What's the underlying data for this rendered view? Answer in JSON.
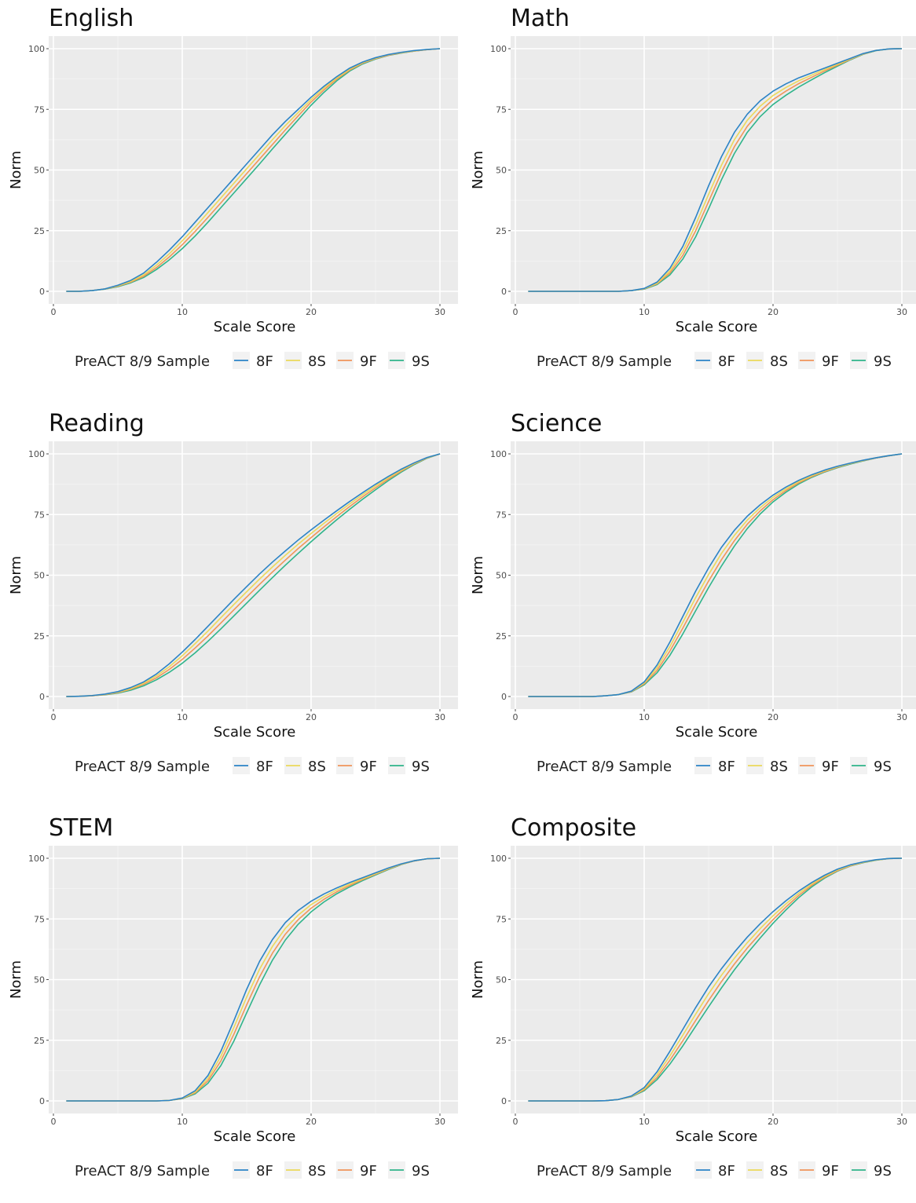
{
  "figure": {
    "legend_title": "PreACT 8/9 Sample"
  },
  "chart_data": [
    {
      "type": "line",
      "title": "English",
      "xlabel": "Scale Score",
      "ylabel": "Norm",
      "xlim": [
        0,
        30
      ],
      "ylim": [
        0,
        100
      ],
      "xticks": [
        "0",
        "10",
        "20",
        "30"
      ],
      "yticks": [
        "0",
        "25",
        "50",
        "75",
        "100"
      ],
      "grid": true,
      "legend_position": "bottom",
      "x": [
        1,
        2,
        3,
        4,
        5,
        6,
        7,
        8,
        9,
        10,
        11,
        12,
        13,
        14,
        15,
        16,
        17,
        18,
        19,
        20,
        21,
        22,
        23,
        24,
        25,
        26,
        27,
        28,
        29,
        30
      ],
      "series": [
        {
          "name": "8F",
          "color": "#2b83c6",
          "values": [
            0,
            0,
            0.3,
            1,
            2.5,
            4.5,
            7.5,
            12,
            17,
            22.5,
            28.5,
            34.5,
            40.5,
            46.5,
            52.5,
            58.5,
            64.5,
            70,
            75,
            80,
            84.5,
            88.5,
            92,
            94.5,
            96.3,
            97.6,
            98.5,
            99.2,
            99.7,
            100
          ]
        },
        {
          "name": "8S",
          "color": "#ebd95a",
          "values": [
            0,
            0,
            0.3,
            1,
            2.3,
            4.1,
            6.8,
            10.8,
            15.5,
            20.8,
            26.5,
            32.5,
            38.5,
            44.5,
            50.5,
            56.5,
            62.5,
            68.3,
            73.7,
            79,
            83.8,
            88,
            91.6,
            94.3,
            96.1,
            97.5,
            98.4,
            99.1,
            99.7,
            100
          ]
        },
        {
          "name": "9F",
          "color": "#f0955a",
          "values": [
            0,
            0,
            0.3,
            1,
            2.1,
            3.8,
            6.2,
            9.8,
            14.2,
            19.2,
            24.7,
            30.5,
            36.5,
            42.5,
            48.5,
            54.5,
            60.5,
            66.5,
            72.3,
            78,
            83,
            87.5,
            91.2,
            94,
            95.9,
            97.3,
            98.3,
            99,
            99.6,
            100
          ]
        },
        {
          "name": "9S",
          "color": "#2fb48a",
          "values": [
            0,
            0,
            0.3,
            0.9,
            1.9,
            3.5,
            5.7,
            9,
            13,
            17.6,
            22.8,
            28.5,
            34.5,
            40.5,
            46.5,
            52.5,
            58.7,
            64.7,
            70.7,
            76.7,
            82,
            86.8,
            90.8,
            93.7,
            95.7,
            97.2,
            98.2,
            99,
            99.6,
            100
          ]
        }
      ]
    },
    {
      "type": "line",
      "title": "Math",
      "xlabel": "Scale Score",
      "ylabel": "Norm",
      "xlim": [
        0,
        30
      ],
      "ylim": [
        0,
        100
      ],
      "xticks": [
        "0",
        "10",
        "20",
        "30"
      ],
      "yticks": [
        "0",
        "25",
        "50",
        "75",
        "100"
      ],
      "grid": true,
      "legend_position": "bottom",
      "x": [
        1,
        2,
        3,
        4,
        5,
        6,
        7,
        8,
        9,
        10,
        11,
        12,
        13,
        14,
        15,
        16,
        17,
        18,
        19,
        20,
        21,
        22,
        23,
        24,
        25,
        26,
        27,
        28,
        29,
        30
      ],
      "series": [
        {
          "name": "8F",
          "color": "#2b83c6",
          "values": [
            0,
            0,
            0,
            0,
            0,
            0,
            0,
            0,
            0.3,
            1.2,
            3.8,
            9.5,
            18.5,
            30.5,
            43.5,
            55.5,
            65.5,
            73,
            78.5,
            82.5,
            85.5,
            88,
            90,
            92,
            94,
            96,
            98,
            99.3,
            99.9,
            100
          ]
        },
        {
          "name": "8S",
          "color": "#ebd95a",
          "values": [
            0,
            0,
            0,
            0,
            0,
            0,
            0,
            0,
            0.3,
            1.1,
            3.4,
            8.5,
            16.5,
            27.5,
            40,
            52,
            62.5,
            70.5,
            76.3,
            80.7,
            84,
            86.8,
            89.1,
            91.4,
            93.6,
            95.8,
            97.9,
            99.3,
            99.9,
            100
          ]
        },
        {
          "name": "9F",
          "color": "#f0955a",
          "values": [
            0,
            0,
            0,
            0,
            0,
            0,
            0,
            0,
            0.3,
            1,
            3.1,
            7.6,
            14.8,
            25,
            37,
            49,
            59.6,
            68,
            74.2,
            79,
            82.5,
            85.6,
            88.2,
            90.8,
            93.2,
            95.6,
            97.8,
            99.3,
            99.9,
            100
          ]
        },
        {
          "name": "9S",
          "color": "#2fb48a",
          "values": [
            0,
            0,
            0,
            0,
            0,
            0,
            0,
            0,
            0.3,
            0.9,
            2.8,
            6.8,
            13.3,
            22.5,
            34,
            46,
            56.8,
            65.5,
            72,
            77,
            80.8,
            84.2,
            87.2,
            90.1,
            92.8,
            95.4,
            97.7,
            99.2,
            99.9,
            100
          ]
        }
      ]
    },
    {
      "type": "line",
      "title": "Reading",
      "xlabel": "Scale Score",
      "ylabel": "Norm",
      "xlim": [
        0,
        30
      ],
      "ylim": [
        0,
        100
      ],
      "xticks": [
        "0",
        "10",
        "20",
        "30"
      ],
      "yticks": [
        "0",
        "25",
        "50",
        "75",
        "100"
      ],
      "grid": true,
      "legend_position": "bottom",
      "x": [
        1,
        2,
        3,
        4,
        5,
        6,
        7,
        8,
        9,
        10,
        11,
        12,
        13,
        14,
        15,
        16,
        17,
        18,
        19,
        20,
        21,
        22,
        23,
        24,
        25,
        26,
        27,
        28,
        29,
        30
      ],
      "series": [
        {
          "name": "8F",
          "color": "#2b83c6",
          "values": [
            0,
            0.1,
            0.4,
            1,
            2,
            3.7,
            6,
            9.3,
            13.5,
            18.3,
            23.5,
            29,
            34.5,
            40,
            45.3,
            50.5,
            55.4,
            60,
            64.5,
            68.7,
            72.7,
            76.6,
            80.4,
            84,
            87.5,
            90.7,
            93.7,
            96.3,
            98.5,
            100
          ]
        },
        {
          "name": "8S",
          "color": "#ebd95a",
          "values": [
            0,
            0.1,
            0.4,
            0.9,
            1.8,
            3.3,
            5.5,
            8.5,
            12.3,
            16.8,
            21.8,
            27,
            32.5,
            37.9,
            43.2,
            48.4,
            53.4,
            58.2,
            62.8,
            67.2,
            71.4,
            75.5,
            79.4,
            83.2,
            86.8,
            90.2,
            93.3,
            96.1,
            98.4,
            100
          ]
        },
        {
          "name": "9F",
          "color": "#f0955a",
          "values": [
            0,
            0.1,
            0.3,
            0.8,
            1.6,
            3,
            5,
            7.7,
            11.2,
            15.3,
            20,
            25,
            30.3,
            35.7,
            41,
            46.2,
            51.3,
            56.2,
            61,
            65.5,
            69.9,
            74.2,
            78.3,
            82.3,
            86,
            89.6,
            92.9,
            95.9,
            98.3,
            100
          ]
        },
        {
          "name": "9S",
          "color": "#2fb48a",
          "values": [
            0,
            0.1,
            0.3,
            0.7,
            1.4,
            2.6,
            4.4,
            6.9,
            10,
            13.7,
            18,
            22.8,
            27.9,
            33.2,
            38.5,
            43.8,
            49,
            54.1,
            59,
            63.8,
            68.4,
            72.9,
            77.2,
            81.3,
            85.2,
            89,
            92.5,
            95.6,
            98.2,
            100
          ]
        }
      ]
    },
    {
      "type": "line",
      "title": "Science",
      "xlabel": "Scale Score",
      "ylabel": "Norm",
      "xlim": [
        0,
        30
      ],
      "ylim": [
        0,
        100
      ],
      "xticks": [
        "0",
        "10",
        "20",
        "30"
      ],
      "yticks": [
        "0",
        "25",
        "50",
        "75",
        "100"
      ],
      "grid": true,
      "legend_position": "bottom",
      "x": [
        1,
        2,
        3,
        4,
        5,
        6,
        7,
        8,
        9,
        10,
        11,
        12,
        13,
        14,
        15,
        16,
        17,
        18,
        19,
        20,
        21,
        22,
        23,
        24,
        25,
        26,
        27,
        28,
        29,
        30
      ],
      "series": [
        {
          "name": "8F",
          "color": "#2b83c6",
          "values": [
            0,
            0,
            0,
            0,
            0,
            0,
            0.3,
            0.8,
            2.2,
            6,
            13,
            22.5,
            33,
            43.5,
            53,
            61.5,
            68.5,
            74.3,
            79,
            83,
            86.3,
            89.1,
            91.4,
            93.3,
            94.9,
            96.2,
            97.4,
            98.4,
            99.3,
            100
          ]
        },
        {
          "name": "8S",
          "color": "#ebd95a",
          "values": [
            0,
            0,
            0,
            0,
            0,
            0,
            0.3,
            0.8,
            2.1,
            5.6,
            11.9,
            20.6,
            30.6,
            40.8,
            50.3,
            59,
            66.4,
            72.7,
            77.8,
            82.1,
            85.6,
            88.6,
            91,
            93,
            94.7,
            96.1,
            97.3,
            98.4,
            99.3,
            100
          ]
        },
        {
          "name": "9F",
          "color": "#f0955a",
          "values": [
            0,
            0,
            0,
            0,
            0,
            0,
            0.3,
            0.8,
            2,
            5.2,
            10.8,
            18.8,
            28.2,
            38.1,
            47.6,
            56.4,
            64.2,
            71,
            76.5,
            81.1,
            84.9,
            88.1,
            90.6,
            92.7,
            94.5,
            96,
            97.2,
            98.3,
            99.2,
            100
          ]
        },
        {
          "name": "9S",
          "color": "#2fb48a",
          "values": [
            0,
            0,
            0,
            0,
            0,
            0,
            0.3,
            0.8,
            1.9,
            4.8,
            9.8,
            17,
            25.8,
            35.4,
            44.9,
            53.8,
            62,
            69.2,
            75.2,
            80.2,
            84.2,
            87.6,
            90.3,
            92.5,
            94.3,
            95.8,
            97.1,
            98.3,
            99.2,
            100
          ]
        }
      ]
    },
    {
      "type": "line",
      "title": "STEM",
      "xlabel": "Scale Score",
      "ylabel": "Norm",
      "xlim": [
        0,
        30
      ],
      "ylim": [
        0,
        100
      ],
      "xticks": [
        "0",
        "10",
        "20",
        "30"
      ],
      "yticks": [
        "0",
        "25",
        "50",
        "75",
        "100"
      ],
      "grid": true,
      "legend_position": "bottom",
      "x": [
        1,
        2,
        3,
        4,
        5,
        6,
        7,
        8,
        9,
        10,
        11,
        12,
        13,
        14,
        15,
        16,
        17,
        18,
        19,
        20,
        21,
        22,
        23,
        24,
        25,
        26,
        27,
        28,
        29,
        30
      ],
      "series": [
        {
          "name": "8F",
          "color": "#2b83c6",
          "values": [
            0,
            0,
            0,
            0,
            0,
            0,
            0,
            0,
            0.2,
            1.2,
            4.2,
            10.5,
            20.5,
            33,
            46,
            57.5,
            66.5,
            73.5,
            78.5,
            82.3,
            85.3,
            87.8,
            90,
            92,
            94,
            96,
            97.7,
            99,
            99.8,
            100
          ]
        },
        {
          "name": "8S",
          "color": "#ebd95a",
          "values": [
            0,
            0,
            0,
            0,
            0,
            0,
            0,
            0,
            0.2,
            1.1,
            3.7,
            9.3,
            18.4,
            30.2,
            42.8,
            54.3,
            63.7,
            71.1,
            76.6,
            80.9,
            84.2,
            87,
            89.4,
            91.6,
            93.7,
            95.8,
            97.6,
            99,
            99.8,
            100
          ]
        },
        {
          "name": "9F",
          "color": "#f0955a",
          "values": [
            0,
            0,
            0,
            0,
            0,
            0,
            0,
            0,
            0.2,
            1,
            3.3,
            8.3,
            16.5,
            27.4,
            39.6,
            51.1,
            60.9,
            68.7,
            74.7,
            79.4,
            83.1,
            86.2,
            88.8,
            91.2,
            93.4,
            95.6,
            97.5,
            98.9,
            99.8,
            100
          ]
        },
        {
          "name": "9S",
          "color": "#2fb48a",
          "values": [
            0,
            0,
            0,
            0,
            0,
            0,
            0,
            0,
            0.2,
            0.9,
            2.9,
            7.3,
            14.6,
            24.6,
            36.3,
            47.8,
            58,
            66.3,
            72.8,
            77.9,
            82,
            85.4,
            88.2,
            90.8,
            93.1,
            95.4,
            97.4,
            98.9,
            99.8,
            100
          ]
        }
      ]
    },
    {
      "type": "line",
      "title": "Composite",
      "xlabel": "Scale Score",
      "ylabel": "Norm",
      "xlim": [
        0,
        30
      ],
      "ylim": [
        0,
        100
      ],
      "xticks": [
        "0",
        "10",
        "20",
        "30"
      ],
      "yticks": [
        "0",
        "25",
        "50",
        "75",
        "100"
      ],
      "grid": true,
      "legend_position": "bottom",
      "x": [
        1,
        2,
        3,
        4,
        5,
        6,
        7,
        8,
        9,
        10,
        11,
        12,
        13,
        14,
        15,
        16,
        17,
        18,
        19,
        20,
        21,
        22,
        23,
        24,
        25,
        26,
        27,
        28,
        29,
        30
      ],
      "series": [
        {
          "name": "8F",
          "color": "#2b83c6",
          "values": [
            0,
            0,
            0,
            0,
            0,
            0,
            0.1,
            0.6,
            2,
            5.5,
            12,
            20.5,
            29.5,
            38.5,
            47,
            54.5,
            61.3,
            67.5,
            73,
            78,
            82.5,
            86.5,
            90,
            93,
            95.5,
            97.3,
            98.5,
            99.4,
            99.9,
            100
          ]
        },
        {
          "name": "8S",
          "color": "#ebd95a",
          "values": [
            0,
            0,
            0,
            0,
            0,
            0,
            0.1,
            0.6,
            1.9,
            5,
            10.8,
            18.6,
            27.1,
            35.8,
            44.2,
            51.8,
            58.8,
            65.2,
            71,
            76.3,
            81.2,
            85.6,
            89.4,
            92.6,
            95.2,
            97.1,
            98.4,
            99.3,
            99.9,
            100
          ]
        },
        {
          "name": "9F",
          "color": "#f0955a",
          "values": [
            0,
            0,
            0,
            0,
            0,
            0,
            0.1,
            0.6,
            1.8,
            4.6,
            9.7,
            16.8,
            24.8,
            33.2,
            41.4,
            49.2,
            56.4,
            63,
            69,
            74.7,
            79.9,
            84.7,
            88.8,
            92.2,
            94.9,
            96.9,
            98.3,
            99.3,
            99.9,
            100
          ]
        },
        {
          "name": "9S",
          "color": "#2fb48a",
          "values": [
            0,
            0,
            0,
            0,
            0,
            0,
            0.1,
            0.6,
            1.7,
            4.2,
            8.8,
            15.2,
            22.7,
            30.8,
            38.8,
            46.6,
            54,
            60.8,
            67.1,
            73.2,
            78.7,
            83.8,
            88.2,
            91.8,
            94.7,
            96.8,
            98.2,
            99.2,
            99.9,
            100
          ]
        }
      ]
    }
  ]
}
